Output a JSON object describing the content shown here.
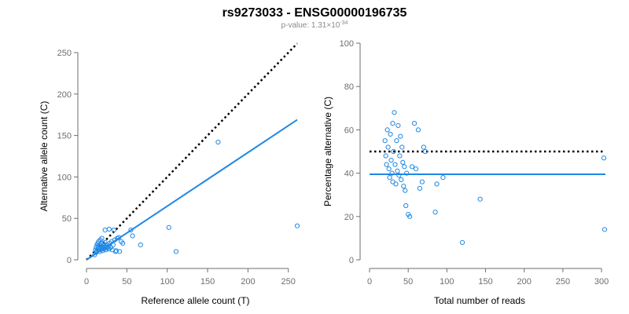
{
  "title": "rs9273033 - ENSG00000196735",
  "subtitle": {
    "prefix": "p-value: 1.31×10",
    "exponent": "-34"
  },
  "colors": {
    "points": "#1E88E5",
    "fit_line": "#1E88E5",
    "reference_line": "#000000",
    "axis": "#6e6e6e"
  },
  "chart_data": [
    {
      "type": "scatter",
      "xlabel": "Reference allele count (T)",
      "ylabel": "Alternative allele count (C)",
      "xlim": [
        0,
        260
      ],
      "ylim": [
        0,
        250
      ],
      "xticks": [
        0,
        50,
        100,
        150,
        200,
        250
      ],
      "yticks": [
        0,
        50,
        100,
        150,
        200,
        250
      ],
      "grid": false,
      "points": [
        [
          10,
          6
        ],
        [
          11,
          12
        ],
        [
          12,
          9
        ],
        [
          12,
          15
        ],
        [
          13,
          18
        ],
        [
          13,
          11
        ],
        [
          14,
          20
        ],
        [
          14,
          13
        ],
        [
          15,
          16
        ],
        [
          15,
          22
        ],
        [
          16,
          10
        ],
        [
          16,
          18
        ],
        [
          17,
          14
        ],
        [
          17,
          24
        ],
        [
          18,
          12
        ],
        [
          18,
          20
        ],
        [
          19,
          16
        ],
        [
          19,
          26
        ],
        [
          20,
          14
        ],
        [
          20,
          11
        ],
        [
          21,
          19
        ],
        [
          21,
          15
        ],
        [
          22,
          13
        ],
        [
          22,
          17
        ],
        [
          23,
          21
        ],
        [
          23,
          36
        ],
        [
          24,
          15
        ],
        [
          24,
          12
        ],
        [
          25,
          18
        ],
        [
          26,
          14
        ],
        [
          27,
          16
        ],
        [
          28,
          13
        ],
        [
          28,
          37
        ],
        [
          29,
          20
        ],
        [
          30,
          15
        ],
        [
          31,
          22
        ],
        [
          32,
          12
        ],
        [
          33,
          18
        ],
        [
          34,
          36
        ],
        [
          35,
          24
        ],
        [
          36,
          10
        ],
        [
          37,
          11
        ],
        [
          38,
          26
        ],
        [
          40,
          27
        ],
        [
          41,
          10
        ],
        [
          43,
          22
        ],
        [
          45,
          20
        ],
        [
          55,
          36
        ],
        [
          57,
          29
        ],
        [
          67,
          18
        ],
        [
          102,
          39
        ],
        [
          111,
          10
        ],
        [
          163,
          142
        ],
        [
          261,
          41
        ]
      ],
      "fit_line": {
        "from": [
          0,
          0
        ],
        "to": [
          261,
          169
        ]
      },
      "reference_line": {
        "from": [
          0,
          0
        ],
        "to": [
          261,
          261
        ]
      }
    },
    {
      "type": "scatter",
      "xlabel": "Total number of reads",
      "ylabel": "Percentage alternative (C)",
      "xlim": [
        0,
        305
      ],
      "ylim": [
        0,
        100
      ],
      "xticks": [
        0,
        50,
        100,
        150,
        200,
        250,
        300
      ],
      "yticks": [
        0,
        20,
        40,
        60,
        80,
        100
      ],
      "grid": false,
      "points": [
        [
          20,
          55
        ],
        [
          21,
          48
        ],
        [
          22,
          44
        ],
        [
          23,
          60
        ],
        [
          24,
          52
        ],
        [
          25,
          42
        ],
        [
          26,
          38
        ],
        [
          27,
          58
        ],
        [
          28,
          46
        ],
        [
          29,
          40
        ],
        [
          30,
          63
        ],
        [
          30,
          36
        ],
        [
          31,
          50
        ],
        [
          32,
          68
        ],
        [
          33,
          44
        ],
        [
          34,
          35
        ],
        [
          35,
          55
        ],
        [
          36,
          41
        ],
        [
          37,
          62
        ],
        [
          38,
          39
        ],
        [
          39,
          48
        ],
        [
          40,
          57
        ],
        [
          41,
          37
        ],
        [
          42,
          52
        ],
        [
          43,
          45
        ],
        [
          44,
          34
        ],
        [
          45,
          43
        ],
        [
          46,
          32
        ],
        [
          47,
          25
        ],
        [
          48,
          40
        ],
        [
          50,
          21
        ],
        [
          52,
          20
        ],
        [
          55,
          43
        ],
        [
          58,
          63
        ],
        [
          60,
          42
        ],
        [
          63,
          60
        ],
        [
          65,
          33
        ],
        [
          68,
          36
        ],
        [
          70,
          52
        ],
        [
          72,
          50
        ],
        [
          85,
          22
        ],
        [
          87,
          35
        ],
        [
          95,
          38
        ],
        [
          120,
          8
        ],
        [
          143,
          28
        ],
        [
          303,
          47
        ],
        [
          304,
          14
        ]
      ],
      "fit_line": {
        "from": [
          0,
          39.5
        ],
        "to": [
          305,
          39.5
        ]
      },
      "reference_line": {
        "from": [
          0,
          50
        ],
        "to": [
          305,
          50
        ]
      }
    }
  ]
}
